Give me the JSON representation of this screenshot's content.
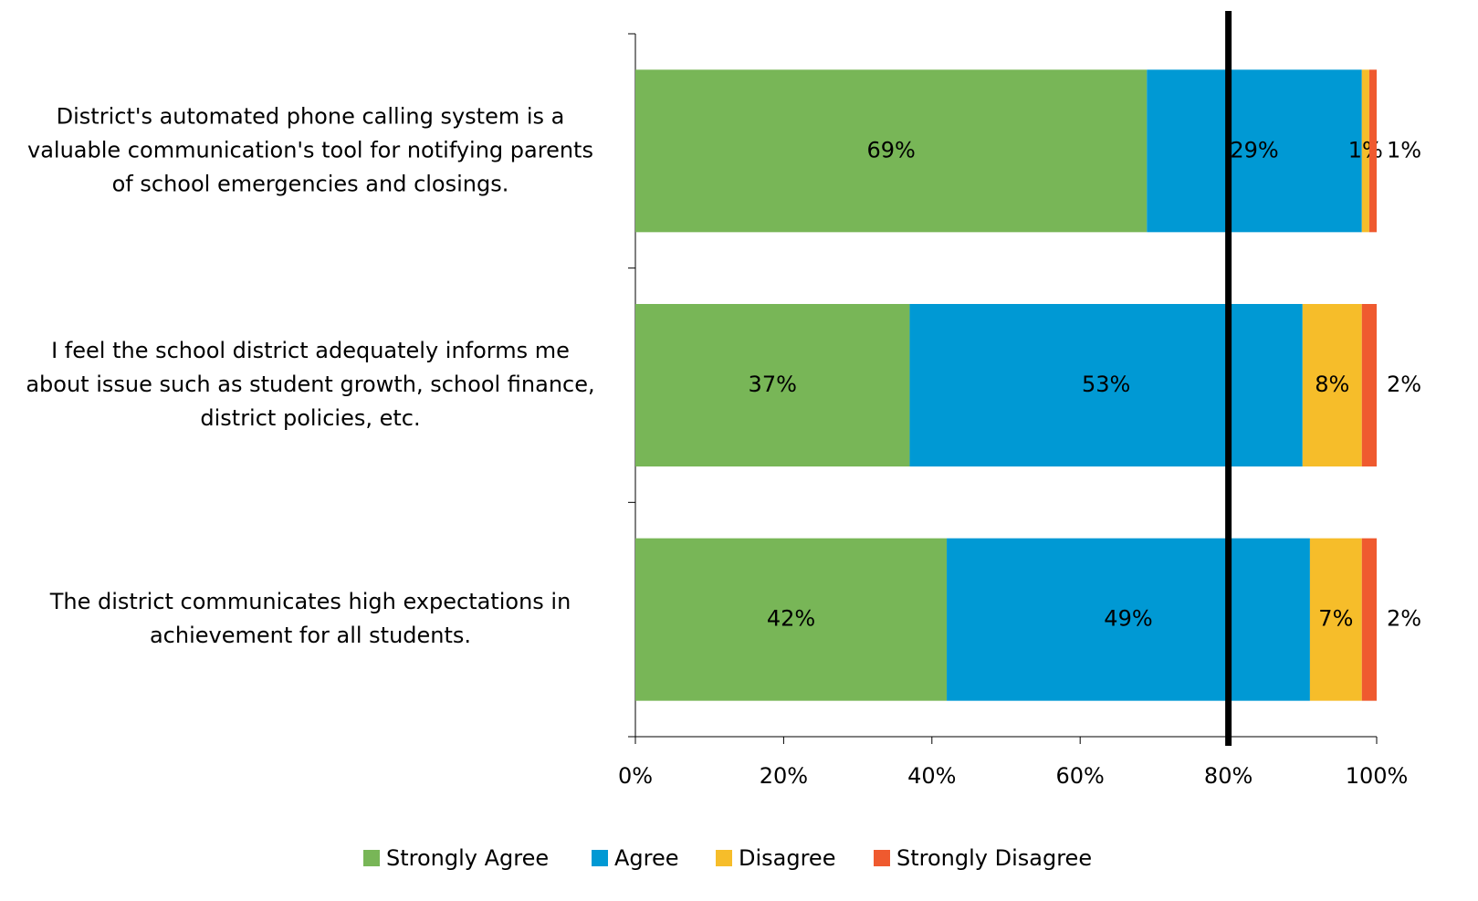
{
  "chart_data": {
    "type": "stacked_bar_horizontal",
    "categories": [
      [
        "District's automated phone calling system is a",
        "valuable communication's tool for notifying parents",
        "of school emergencies and closings."
      ],
      [
        "I feel the school district adequately informs me",
        "about issue such as student growth, school finance,",
        "district policies, etc."
      ],
      [
        "The district communicates high expectations in",
        "achievement for all students."
      ]
    ],
    "series": [
      {
        "name": "Strongly Agree",
        "color": "#78b657",
        "values": [
          69,
          37,
          42
        ],
        "value_labels": [
          "69%",
          "37%",
          "42%"
        ]
      },
      {
        "name": "Agree",
        "color": "#0099d4",
        "values": [
          29,
          53,
          49
        ],
        "value_labels": [
          "29%",
          "53%",
          "49%"
        ]
      },
      {
        "name": "Disagree",
        "color": "#f6bd2a",
        "values": [
          1,
          8,
          7
        ],
        "value_labels": [
          "1%",
          "8%",
          "7%"
        ]
      },
      {
        "name": "Strongly Disagree",
        "color": "#ef5a2f",
        "values": [
          1,
          2,
          2
        ],
        "value_labels": [
          "1%",
          "2%",
          "2%"
        ]
      }
    ],
    "xlim": [
      0,
      100
    ],
    "xticks": [
      {
        "value": 0,
        "label": "0%"
      },
      {
        "value": 20,
        "label": "20%"
      },
      {
        "value": 40,
        "label": "40%"
      },
      {
        "value": 60,
        "label": "60%"
      },
      {
        "value": 80,
        "label": "80%"
      },
      {
        "value": 100,
        "label": "100%"
      }
    ],
    "reference_line": {
      "value": 80,
      "color": "#000000"
    },
    "legend": "bottom"
  }
}
